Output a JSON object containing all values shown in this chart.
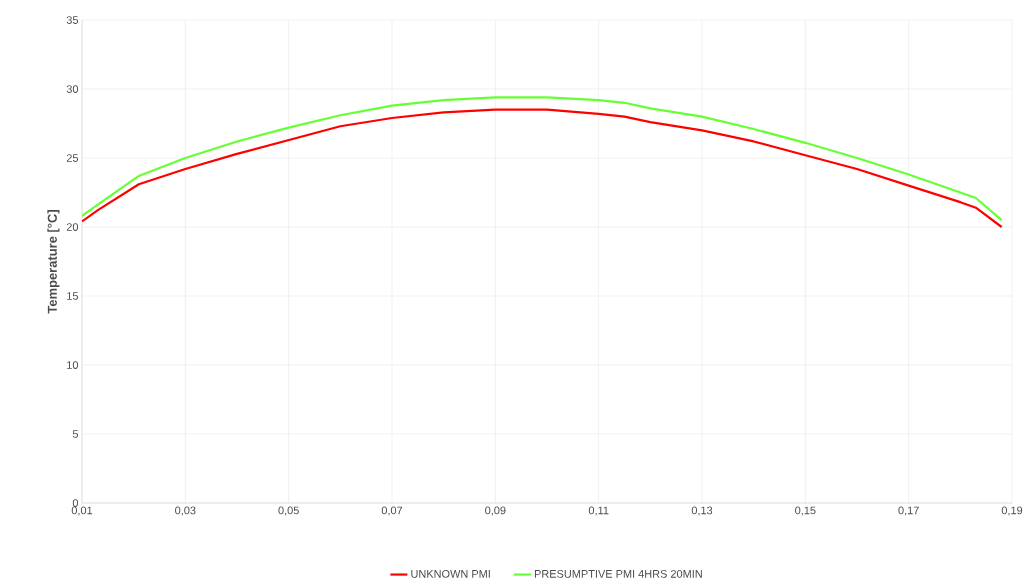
{
  "chart_data": {
    "type": "line",
    "ylabel": "Temperature [°C]",
    "x": [
      0.01,
      0.013,
      0.021,
      0.03,
      0.04,
      0.05,
      0.06,
      0.07,
      0.08,
      0.09,
      0.1,
      0.11,
      0.115,
      0.12,
      0.13,
      0.14,
      0.15,
      0.16,
      0.17,
      0.18,
      0.183,
      0.188
    ],
    "series": [
      {
        "name": "UNKNOWN PMI",
        "color": "#ff0000",
        "values": [
          20.4,
          21.2,
          23.1,
          24.2,
          25.3,
          26.3,
          27.3,
          27.9,
          28.3,
          28.5,
          28.5,
          28.2,
          28.0,
          27.6,
          27.0,
          26.2,
          25.2,
          24.2,
          23.0,
          21.8,
          21.4,
          20.0
        ]
      },
      {
        "name": "PRESUMPTIVE PMI 4HRS 20MIN",
        "color": "#66ff33",
        "values": [
          20.8,
          21.6,
          23.7,
          25.0,
          26.2,
          27.2,
          28.1,
          28.8,
          29.2,
          29.4,
          29.4,
          29.2,
          29.0,
          28.6,
          28.0,
          27.1,
          26.1,
          25.0,
          23.8,
          22.5,
          22.1,
          20.5
        ]
      }
    ],
    "xlim": [
      0.01,
      0.19
    ],
    "xticks": [
      {
        "value": 0.01,
        "label": "0,01"
      },
      {
        "value": 0.03,
        "label": "0,03"
      },
      {
        "value": 0.05,
        "label": "0,05"
      },
      {
        "value": 0.07,
        "label": "0,07"
      },
      {
        "value": 0.09,
        "label": "0,09"
      },
      {
        "value": 0.11,
        "label": "0,11"
      },
      {
        "value": 0.13,
        "label": "0,13"
      },
      {
        "value": 0.15,
        "label": "0,15"
      },
      {
        "value": 0.17,
        "label": "0,17"
      },
      {
        "value": 0.19,
        "label": "0,19"
      }
    ],
    "ylim": [
      0,
      35
    ],
    "yticks": [
      0,
      5,
      10,
      15,
      20,
      25,
      30,
      35
    ],
    "grid": true,
    "legend": "bottom",
    "marker": "none",
    "line_style": "solid"
  }
}
